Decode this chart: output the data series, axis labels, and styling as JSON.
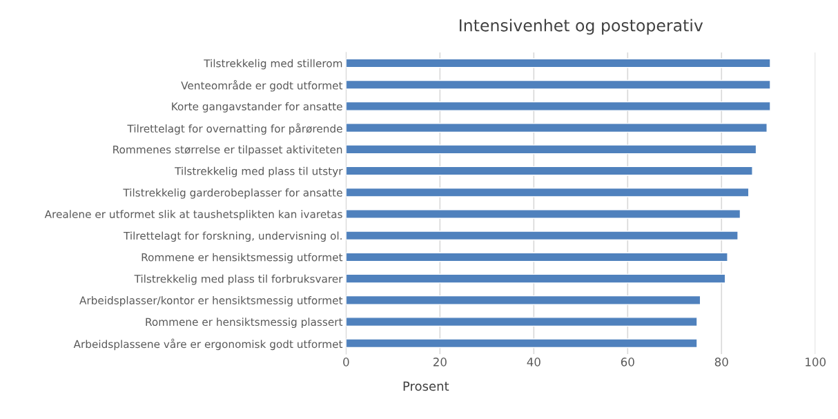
{
  "chart_data": {
    "type": "bar",
    "orientation": "horizontal",
    "title": "Intensivenhet og postoperativ",
    "xlabel": "Prosent",
    "categories": [
      "Tilstrekkelig med stillerom",
      "Venteområde er godt utformet",
      "Korte gangavstander for ansatte",
      "Tilrettelagt for overnatting for pårørende",
      "Rommenes størrelse er tilpasset aktiviteten",
      "Tilstrekkelig med plass til utstyr",
      "Tilstrekkelig garderobeplasser for ansatte",
      "Arealene er utformet slik at taushetsplikten kan ivaretas",
      "Tilrettelagt for forskning, undervisning ol.",
      "Rommene er hensiktsmessig utformet",
      "Tilstrekkelig med plass til forbruksvarer",
      "Arbeidsplasser/kontor er hensiktsmessig utformet",
      "Rommene er hensiktsmessig plassert",
      "Arbeidsplassene våre er ergonomisk godt utformet"
    ],
    "values": [
      90.4,
      90.4,
      90.4,
      89.7,
      87.4,
      86.6,
      85.8,
      84.0,
      83.5,
      81.3,
      80.8,
      75.5,
      74.8,
      74.8
    ],
    "color": "#4f81bd",
    "xlim": [
      0,
      100
    ],
    "xticks": [
      0,
      20,
      40,
      60,
      80,
      100
    ],
    "grid": "x"
  }
}
